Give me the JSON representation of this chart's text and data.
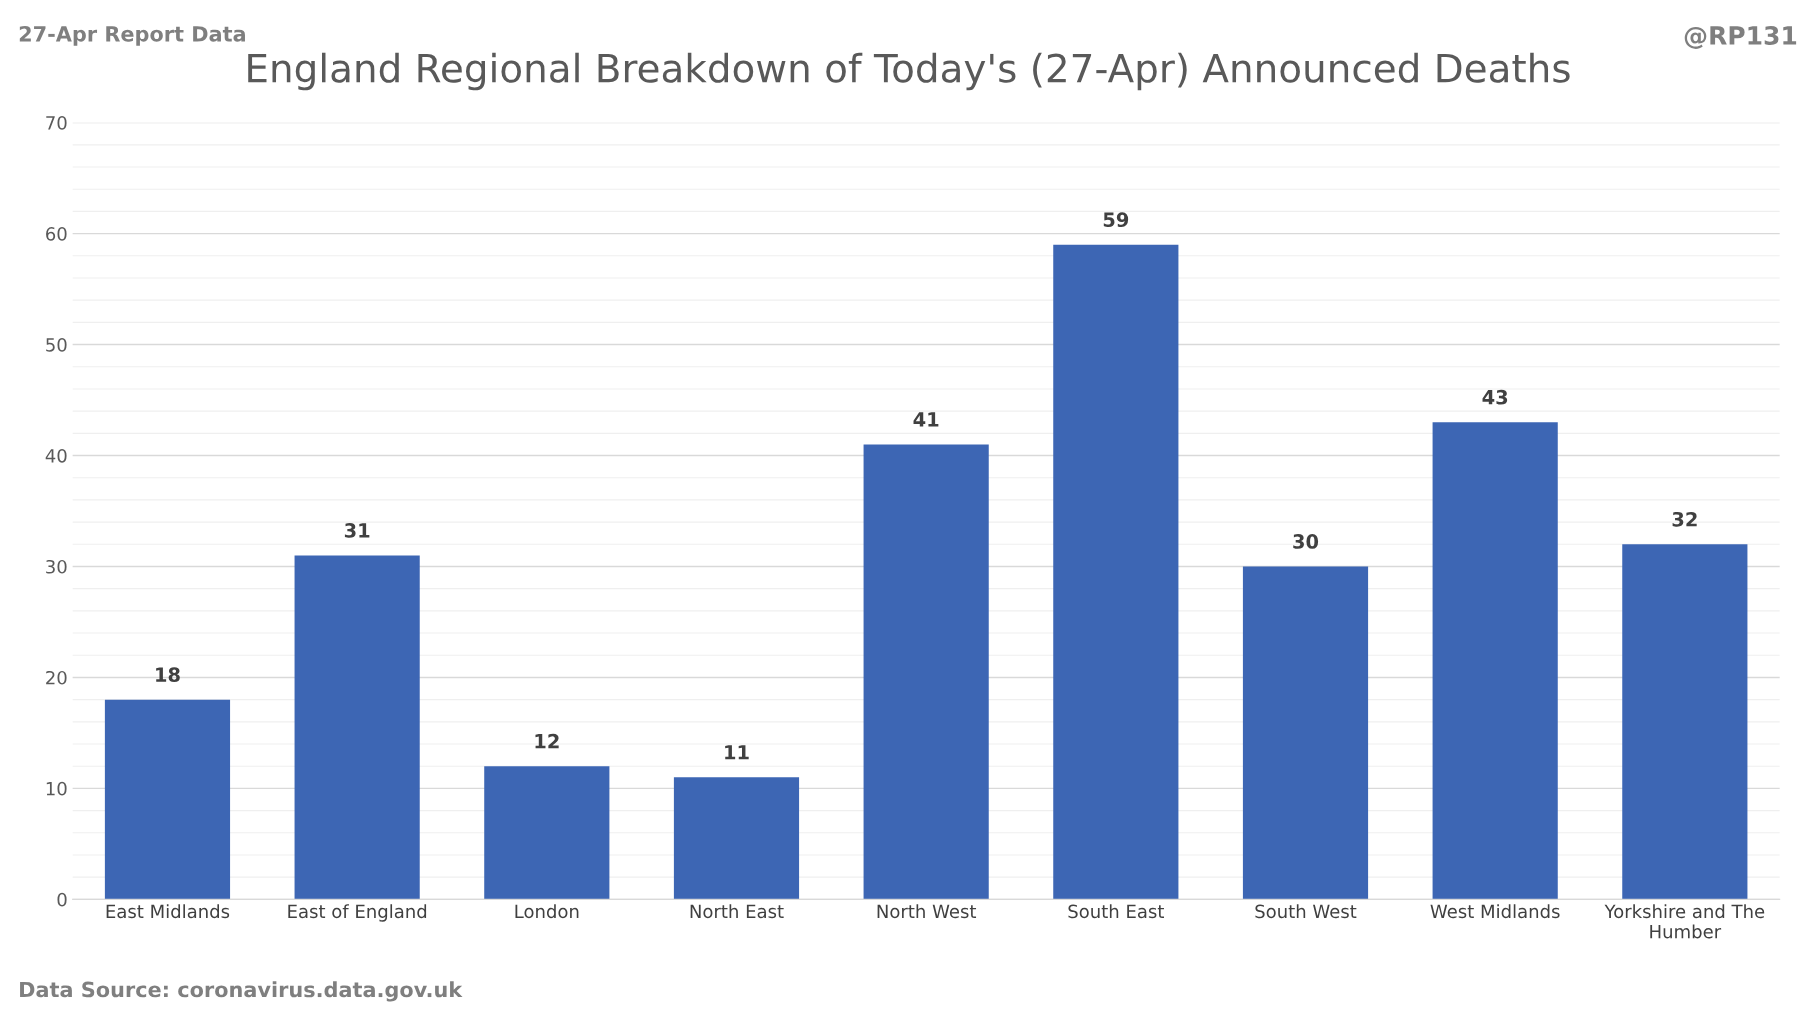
{
  "chart_data": {
    "type": "bar",
    "title": "England Regional Breakdown of Today's (27-Apr) Announced Deaths",
    "categories": [
      "East Midlands",
      "East of England",
      "London",
      "North East",
      "North West",
      "South East",
      "South West",
      "West Midlands",
      "Yorkshire and The Humber"
    ],
    "values": [
      18,
      31,
      12,
      11,
      41,
      59,
      30,
      43,
      32
    ],
    "color": "#3d66b4",
    "ylim": [
      0,
      70
    ],
    "yticks": [
      0,
      10,
      20,
      30,
      40,
      50,
      60,
      70
    ],
    "grid": "y",
    "data_labels": true,
    "legend": false,
    "annotations": [
      "27-Apr Report Data",
      "@RP131",
      "Data Source: coronavirus.data.gov.uk"
    ]
  }
}
